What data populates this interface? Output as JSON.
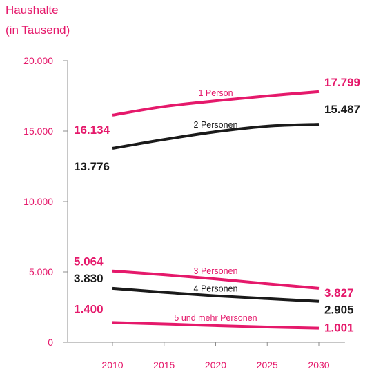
{
  "chart_data": {
    "type": "line",
    "ylabel_line1": "Haushalte",
    "ylabel_line2": "(in Tausend)",
    "x": [
      2010,
      2015,
      2020,
      2025,
      2030
    ],
    "xlim": [
      2006,
      2032
    ],
    "ylim": [
      0,
      20000
    ],
    "yticks": [
      0,
      5000,
      10000,
      15000,
      20000
    ],
    "ytick_labels": [
      "0",
      "5.000",
      "10.000",
      "15.000",
      "20.000"
    ],
    "xtick_labels": [
      "2010",
      "2015",
      "2020",
      "2025",
      "2030"
    ],
    "grid": false,
    "series": [
      {
        "name": "1 Person",
        "color": "#e5196b",
        "values": [
          16134,
          16750,
          17150,
          17500,
          17799
        ],
        "start_label": "16.134",
        "end_label": "17.799"
      },
      {
        "name": "2 Personen",
        "color": "#1a1a1a",
        "values": [
          13776,
          14400,
          14950,
          15350,
          15487
        ],
        "start_label": "13.776",
        "end_label": "15.487"
      },
      {
        "name": "3 Personen",
        "color": "#e5196b",
        "values": [
          5064,
          4800,
          4500,
          4150,
          3827
        ],
        "start_label": "5.064",
        "end_label": "3.827"
      },
      {
        "name": "4 Personen",
        "color": "#1a1a1a",
        "values": [
          3830,
          3550,
          3300,
          3100,
          2905
        ],
        "start_label": "3.830",
        "end_label": "2.905"
      },
      {
        "name": "5 und mehr Personen",
        "color": "#e5196b",
        "values": [
          1400,
          1300,
          1180,
          1080,
          1001
        ],
        "start_label": "1.400",
        "end_label": "1.001"
      }
    ]
  }
}
